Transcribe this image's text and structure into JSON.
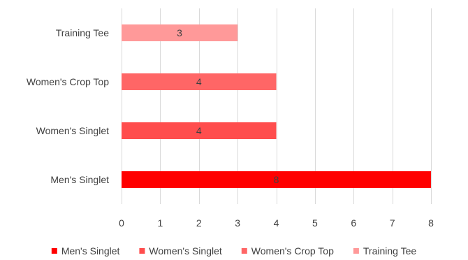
{
  "chart_data": {
    "type": "bar",
    "orientation": "horizontal",
    "categories": [
      "Men's Singlet",
      "Women's Singlet",
      "Women's Crop Top",
      "Training Tee"
    ],
    "values": [
      8,
      4,
      4,
      3
    ],
    "data_labels": [
      "8",
      "4",
      "4",
      "3"
    ],
    "colors": [
      "#ff0000",
      "#ff4d4d",
      "#ff6666",
      "#ff9999"
    ],
    "xlim": [
      0,
      8
    ],
    "x_ticks": [
      "0",
      "1",
      "2",
      "3",
      "4",
      "5",
      "6",
      "7",
      "8"
    ],
    "grid": true,
    "legend_position": "bottom",
    "legend": [
      {
        "label": "Men's Singlet",
        "color": "#ff0000"
      },
      {
        "label": "Women's Singlet",
        "color": "#ff4d4d"
      },
      {
        "label": "Women's Crop Top",
        "color": "#ff6666"
      },
      {
        "label": "Training Tee",
        "color": "#ff9999"
      }
    ]
  }
}
